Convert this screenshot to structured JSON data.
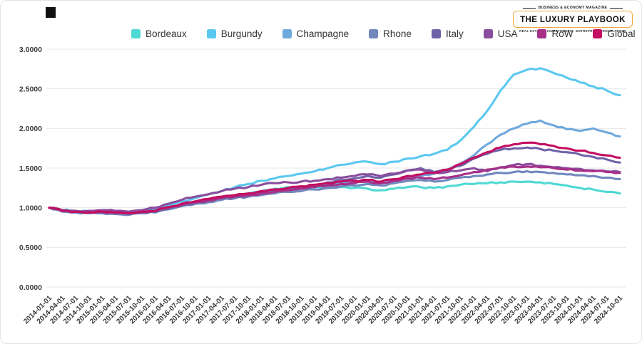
{
  "header": {
    "logo": {
      "top_line": "BUSINESS & ECONOMY MAGAZINE",
      "title": "THE LUXURY PLAYBOOK",
      "bottom_line": "REAL ESTATE • INVESTMENTS • ENTREPRENEURSHIP • HNWI",
      "border_color": "#f2a93b"
    }
  },
  "chart_data": {
    "type": "line",
    "title": "",
    "xlabel": "",
    "ylabel": "",
    "ylim": [
      0,
      3
    ],
    "yticks": [
      0,
      0.5,
      1,
      1.5,
      2,
      2.5,
      3
    ],
    "ytick_labels": [
      "0.0000",
      "0.5000",
      "1.0000",
      "1.5000",
      "2.0000",
      "2.5000",
      "3.0000"
    ],
    "grid": true,
    "legend_position": "top",
    "x": [
      "2014-01-01",
      "2014-04-01",
      "2014-07-01",
      "2014-10-01",
      "2015-01-01",
      "2015-04-01",
      "2015-07-01",
      "2015-10-01",
      "2016-01-01",
      "2016-04-01",
      "2016-07-01",
      "2016-10-01",
      "2017-01-01",
      "2017-04-01",
      "2017-07-01",
      "2017-10-01",
      "2018-01-01",
      "2018-04-01",
      "2018-07-01",
      "2018-10-01",
      "2019-01-01",
      "2019-04-01",
      "2019-07-01",
      "2019-10-01",
      "2020-01-01",
      "2020-04-01",
      "2020-07-01",
      "2020-10-01",
      "2021-01-01",
      "2021-04-01",
      "2021-07-01",
      "2021-10-01",
      "2022-01-01",
      "2022-04-01",
      "2022-07-01",
      "2022-10-01",
      "2023-01-01",
      "2023-04-01",
      "2023-07-01",
      "2023-10-01",
      "2024-01-01",
      "2024-04-01",
      "2024-07-01",
      "2024-10-01"
    ],
    "series": [
      {
        "name": "Bordeaux",
        "color": "#4fd9d3",
        "values": [
          1.0,
          0.96,
          0.95,
          0.94,
          0.95,
          0.94,
          0.93,
          0.94,
          0.95,
          1.0,
          1.04,
          1.07,
          1.1,
          1.13,
          1.16,
          1.18,
          1.21,
          1.24,
          1.26,
          1.26,
          1.26,
          1.25,
          1.26,
          1.25,
          1.24,
          1.22,
          1.24,
          1.26,
          1.26,
          1.25,
          1.27,
          1.29,
          1.3,
          1.31,
          1.32,
          1.33,
          1.33,
          1.32,
          1.3,
          1.28,
          1.25,
          1.23,
          1.2,
          1.18
        ]
      },
      {
        "name": "Burgundy",
        "color": "#5bc8f0",
        "values": [
          1.0,
          0.97,
          0.96,
          0.95,
          0.96,
          0.95,
          0.94,
          0.96,
          0.98,
          1.03,
          1.08,
          1.12,
          1.17,
          1.21,
          1.26,
          1.3,
          1.34,
          1.37,
          1.4,
          1.43,
          1.46,
          1.5,
          1.54,
          1.57,
          1.58,
          1.55,
          1.58,
          1.62,
          1.65,
          1.68,
          1.73,
          1.85,
          2.02,
          2.22,
          2.48,
          2.68,
          2.74,
          2.76,
          2.7,
          2.64,
          2.58,
          2.53,
          2.48,
          2.42
        ]
      },
      {
        "name": "Champagne",
        "color": "#6fa8dc",
        "values": [
          1.0,
          0.97,
          0.96,
          0.95,
          0.95,
          0.94,
          0.93,
          0.95,
          0.96,
          1.0,
          1.04,
          1.07,
          1.09,
          1.12,
          1.14,
          1.16,
          1.19,
          1.21,
          1.23,
          1.25,
          1.27,
          1.29,
          1.31,
          1.32,
          1.33,
          1.31,
          1.34,
          1.38,
          1.4,
          1.43,
          1.48,
          1.56,
          1.66,
          1.8,
          1.92,
          2.0,
          2.06,
          2.1,
          2.04,
          1.99,
          1.97,
          2.0,
          1.95,
          1.9
        ]
      },
      {
        "name": "Rhone",
        "color": "#7088be",
        "values": [
          1.0,
          0.95,
          0.94,
          0.93,
          0.93,
          0.92,
          0.91,
          0.93,
          0.94,
          0.98,
          1.02,
          1.05,
          1.07,
          1.1,
          1.12,
          1.14,
          1.16,
          1.18,
          1.2,
          1.21,
          1.23,
          1.25,
          1.27,
          1.28,
          1.3,
          1.28,
          1.31,
          1.34,
          1.35,
          1.33,
          1.35,
          1.38,
          1.4,
          1.42,
          1.44,
          1.45,
          1.46,
          1.45,
          1.44,
          1.42,
          1.41,
          1.4,
          1.38,
          1.36
        ]
      },
      {
        "name": "Italy",
        "color": "#6f63a8",
        "values": [
          1.0,
          0.96,
          0.95,
          0.94,
          0.94,
          0.93,
          0.92,
          0.94,
          0.95,
          0.99,
          1.03,
          1.06,
          1.09,
          1.12,
          1.14,
          1.16,
          1.19,
          1.21,
          1.24,
          1.26,
          1.29,
          1.32,
          1.35,
          1.37,
          1.4,
          1.38,
          1.42,
          1.47,
          1.5,
          1.45,
          1.47,
          1.53,
          1.62,
          1.68,
          1.73,
          1.75,
          1.76,
          1.74,
          1.72,
          1.7,
          1.67,
          1.64,
          1.61,
          1.57
        ]
      },
      {
        "name": "USA",
        "color": "#8a4d9e",
        "values": [
          1.0,
          0.97,
          0.96,
          0.96,
          0.97,
          0.96,
          0.95,
          0.97,
          1.0,
          1.05,
          1.1,
          1.14,
          1.17,
          1.21,
          1.24,
          1.26,
          1.29,
          1.31,
          1.32,
          1.33,
          1.34,
          1.36,
          1.38,
          1.4,
          1.42,
          1.4,
          1.43,
          1.47,
          1.48,
          1.44,
          1.45,
          1.47,
          1.5,
          1.46,
          1.51,
          1.54,
          1.55,
          1.53,
          1.51,
          1.5,
          1.49,
          1.47,
          1.46,
          1.45
        ]
      },
      {
        "name": "RoW",
        "color": "#a62f88",
        "values": [
          1.0,
          0.96,
          0.95,
          0.94,
          0.95,
          0.94,
          0.93,
          0.95,
          0.96,
          1.0,
          1.04,
          1.07,
          1.09,
          1.12,
          1.14,
          1.16,
          1.18,
          1.2,
          1.22,
          1.24,
          1.26,
          1.28,
          1.3,
          1.31,
          1.33,
          1.31,
          1.34,
          1.37,
          1.38,
          1.36,
          1.38,
          1.41,
          1.45,
          1.48,
          1.51,
          1.52,
          1.52,
          1.51,
          1.5,
          1.48,
          1.47,
          1.46,
          1.45,
          1.44
        ]
      },
      {
        "name": "Global",
        "color": "#c40e61",
        "values": [
          1.0,
          0.96,
          0.95,
          0.94,
          0.95,
          0.94,
          0.93,
          0.95,
          0.96,
          1.01,
          1.05,
          1.08,
          1.11,
          1.14,
          1.16,
          1.18,
          1.21,
          1.23,
          1.25,
          1.27,
          1.29,
          1.31,
          1.33,
          1.34,
          1.35,
          1.33,
          1.36,
          1.4,
          1.42,
          1.44,
          1.48,
          1.55,
          1.63,
          1.7,
          1.76,
          1.8,
          1.82,
          1.8,
          1.78,
          1.75,
          1.72,
          1.69,
          1.66,
          1.63
        ]
      }
    ]
  }
}
